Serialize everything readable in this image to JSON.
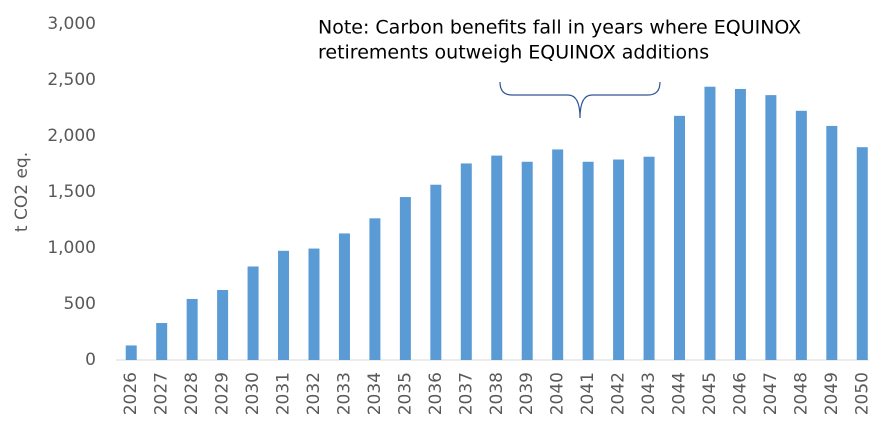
{
  "chart_data": {
    "type": "bar",
    "y_axis_label": "t CO2 eq.",
    "annotation": [
      "Note: Carbon benefits fall in years where EQUINOX",
      "retirements outweigh EQUINOX additions"
    ],
    "categories": [
      "2026",
      "2027",
      "2028",
      "2029",
      "2030",
      "2031",
      "2032",
      "2033",
      "2034",
      "2035",
      "2036",
      "2037",
      "2038",
      "2039",
      "2040",
      "2041",
      "2042",
      "2043",
      "2044",
      "2045",
      "2046",
      "2047",
      "2048",
      "2049",
      "2050"
    ],
    "values": [
      130,
      330,
      545,
      625,
      835,
      975,
      995,
      1130,
      1265,
      1455,
      1565,
      1755,
      1825,
      1770,
      1880,
      1770,
      1790,
      1815,
      2180,
      2440,
      2420,
      2365,
      2225,
      2090,
      1900
    ],
    "color": "#5b9bd5",
    "ylim": [
      0,
      3000
    ],
    "yticks": [
      0,
      {
        "value": 500,
        "label": "500"
      },
      {
        "value": 1000,
        "label": "1,000"
      },
      {
        "value": 1500,
        "label": "1,500"
      },
      {
        "value": 2000,
        "label": "2,000"
      },
      {
        "value": 2500,
        "label": "2,500"
      },
      {
        "value": 3000,
        "label": "3,000"
      }
    ],
    "grid": false
  }
}
